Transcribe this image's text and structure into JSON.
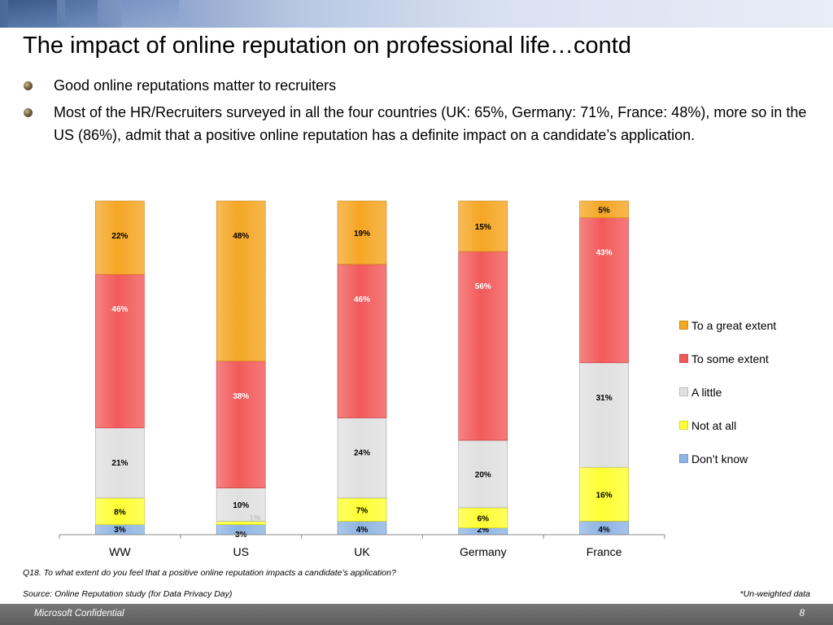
{
  "title": "The impact of online reputation on professional life…contd",
  "bullets": [
    "Good online reputations matter to recruiters",
    "Most of the HR/Recruiters surveyed in all the four countries (UK: 65%, Germany: 71%, France: 48%), more so in the US (86%), admit that a positive online reputation has a definite impact on a candidate’s application."
  ],
  "question": "Q18. To what extent do you feel that a positive online reputation impacts a candidate’s application?",
  "source": "Source: Online Reputation study (for Data Privacy Day)",
  "note": "*Un-weighted data",
  "footer": {
    "left": "Microsoft Confidential",
    "page": "8"
  },
  "chart_data": {
    "type": "bar",
    "stacked": true,
    "percent": true,
    "categories": [
      "WW",
      "US",
      "UK",
      "Germany",
      "France"
    ],
    "series": [
      {
        "name": "Don’t know",
        "values": [
          3,
          3,
          4,
          2,
          4
        ],
        "labels": [
          "3%",
          "3%",
          "4%",
          "2%",
          "4%"
        ],
        "color": "#8eb4e3"
      },
      {
        "name": "Not at all",
        "values": [
          8,
          1,
          7,
          6,
          16
        ],
        "labels": [
          "8%",
          "1%",
          "7%",
          "6%",
          "16%"
        ],
        "color": "#ffff33"
      },
      {
        "name": "A little",
        "values": [
          21,
          10,
          24,
          20,
          31
        ],
        "labels": [
          "21%",
          "10%",
          "24%",
          "20%",
          "31%"
        ],
        "color": "#e0e0e0"
      },
      {
        "name": "To some extent",
        "values": [
          46,
          38,
          46,
          56,
          43
        ],
        "labels": [
          "46%",
          "38%",
          "46%",
          "56%",
          "43%"
        ],
        "color": "#f25a5a"
      },
      {
        "name": "To a great extent",
        "values": [
          22,
          48,
          19,
          15,
          5
        ],
        "labels": [
          "22%",
          "48%",
          "19%",
          "15%",
          "5%"
        ],
        "color": "#f5a623"
      }
    ],
    "legend_position": "right",
    "grid": false
  }
}
